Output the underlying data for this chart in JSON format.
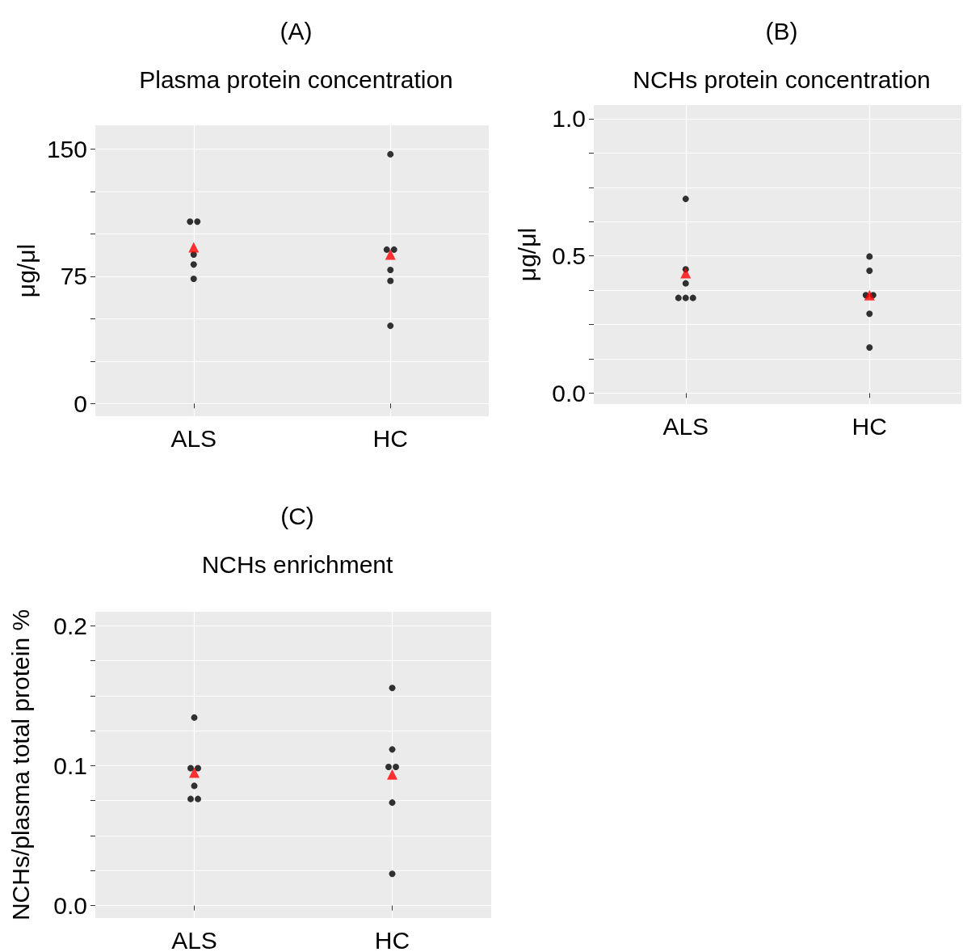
{
  "chart_data": [
    {
      "type": "scatter",
      "title": "(A)",
      "subtitle": "Plasma protein concentration",
      "ylabel": "μg/μl",
      "categories": [
        "ALS",
        "HC"
      ],
      "series": [
        {
          "color": "#000000",
          "marker": "circle",
          "x": [
            "ALS",
            "ALS",
            "ALS",
            "ALS",
            "ALS",
            "HC",
            "HC",
            "HC",
            "HC",
            "HC",
            "HC"
          ],
          "values": [
            107.2,
            107.2,
            87.8,
            81.9,
            73.5,
            146.9,
            90.7,
            90.7,
            78.7,
            72.3,
            45.8
          ]
        },
        {
          "color": "#ff0000",
          "marker": "triangle",
          "x": [
            "ALS",
            "HC"
          ],
          "values": [
            92.1,
            87.8
          ]
        }
      ],
      "ylim": [
        -7.5,
        164
      ],
      "yticks": [
        0,
        {
          "value": 25,
          "label": null
        },
        {
          "value": 50,
          "label": null
        },
        75,
        {
          "value": 100,
          "label": null
        },
        {
          "value": 125,
          "label": null
        },
        150
      ],
      "grid": true
    },
    {
      "type": "scatter",
      "title": "(B)",
      "subtitle": "NCHs protein concentration",
      "ylabel": "μg/μl",
      "categories": [
        "ALS",
        "HC"
      ],
      "series": [
        {
          "color": "#000000",
          "marker": "circle",
          "x": [
            "ALS",
            "ALS",
            "ALS",
            "ALS",
            "ALS",
            "ALS",
            "HC",
            "HC",
            "HC",
            "HC",
            "HC",
            "HC"
          ],
          "values": [
            0.708,
            0.451,
            0.4,
            0.347,
            0.347,
            0.347,
            0.498,
            0.446,
            0.357,
            0.357,
            0.289,
            0.166
          ]
        },
        {
          "color": "#ff0000",
          "marker": "triangle",
          "x": [
            "ALS",
            "HC"
          ],
          "values": [
            0.437,
            0.357
          ]
        }
      ],
      "ylim": [
        -0.04,
        1.05
      ],
      "yticks": [
        {
          "value": 0,
          "label": "0.0"
        },
        {
          "value": 0.125,
          "label": null
        },
        {
          "value": 0.25,
          "label": null
        },
        {
          "value": 0.375,
          "label": null
        },
        0.5,
        {
          "value": 0.625,
          "label": null
        },
        {
          "value": 0.75,
          "label": null
        },
        {
          "value": 0.875,
          "label": null
        },
        {
          "value": 1,
          "label": "1.0"
        }
      ],
      "grid": true
    },
    {
      "type": "scatter",
      "title": "(C)",
      "subtitle": "NCHs enrichment",
      "ylabel": "NCHs/plasma total protein %",
      "categories": [
        "ALS",
        "HC"
      ],
      "series": [
        {
          "color": "#000000",
          "marker": "circle",
          "x": [
            "ALS",
            "ALS",
            "ALS",
            "ALS",
            "ALS",
            "ALS",
            "HC",
            "HC",
            "HC",
            "HC",
            "HC",
            "HC"
          ],
          "values": [
            0.1344,
            0.0982,
            0.0982,
            0.0856,
            0.0762,
            0.0762,
            0.1556,
            0.1116,
            0.0991,
            0.0991,
            0.0736,
            0.0227
          ]
        },
        {
          "color": "#ff0000",
          "marker": "triangle",
          "x": [
            "ALS",
            "HC"
          ],
          "values": [
            0.0951,
            0.0938
          ]
        }
      ],
      "ylim": [
        -0.0089,
        0.21
      ],
      "yticks": [
        {
          "value": 0,
          "label": "0.0"
        },
        {
          "value": 0.025,
          "label": null
        },
        {
          "value": 0.05,
          "label": null
        },
        {
          "value": 0.075,
          "label": null
        },
        0.1,
        {
          "value": 0.125,
          "label": null
        },
        {
          "value": 0.15,
          "label": null
        },
        {
          "value": 0.175,
          "label": null
        },
        0.2
      ],
      "grid": true
    }
  ]
}
